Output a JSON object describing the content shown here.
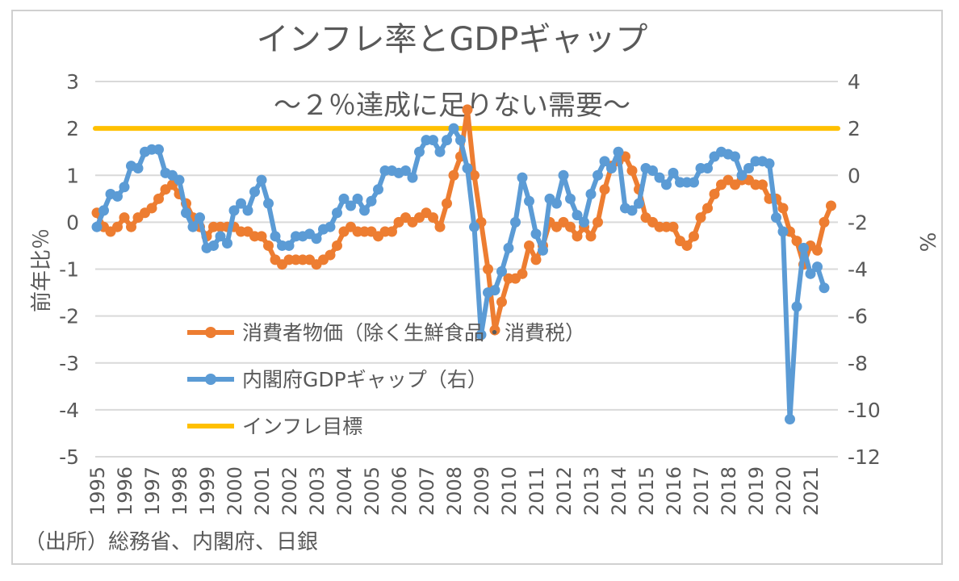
{
  "chart_data": {
    "type": "line",
    "title": "インフレ率とGDPギャップ",
    "subtitle": "～２％達成に足りない需要～",
    "ylabel_left": "前年比％",
    "ylabel_right": "%",
    "source": "（出所）総務省、内閣府、日銀",
    "x_start": "1995Q1",
    "x_frequency": "quarterly",
    "x_tick_labels": [
      "1995",
      "1996",
      "1997",
      "1998",
      "1999",
      "2000",
      "2001",
      "2002",
      "2003",
      "2004",
      "2005",
      "2006",
      "2007",
      "2008",
      "2009",
      "2010",
      "2011",
      "2012",
      "2013",
      "2014",
      "2015",
      "2016",
      "2017",
      "2018",
      "2019",
      "2020",
      "2021"
    ],
    "ylim_left": [
      -5,
      3
    ],
    "yticks_left": [
      "3",
      "2",
      "1",
      "0",
      "-1",
      "-2",
      "-3",
      "-4",
      "-5"
    ],
    "ylim_right": [
      -12,
      4
    ],
    "yticks_right": [
      "4",
      "2",
      "0",
      "-2",
      "-4",
      "-6",
      "-8",
      "-10",
      "-12"
    ],
    "grid": true,
    "legend_placement": "bottom-center inside plot",
    "series": [
      {
        "name": "消費者物価（除く生鮮食品・消費税）",
        "axis": "left",
        "color": "#ED7D31",
        "values": [
          0.2,
          -0.1,
          -0.2,
          -0.1,
          0.1,
          -0.1,
          0.1,
          0.2,
          0.3,
          0.5,
          0.7,
          0.8,
          0.6,
          0.4,
          0.1,
          -0.1,
          -0.3,
          -0.1,
          -0.1,
          -0.1,
          -0.1,
          -0.2,
          -0.2,
          -0.3,
          -0.3,
          -0.5,
          -0.8,
          -0.9,
          -0.8,
          -0.8,
          -0.8,
          -0.8,
          -0.9,
          -0.8,
          -0.7,
          -0.5,
          -0.2,
          -0.1,
          -0.2,
          -0.2,
          -0.2,
          -0.3,
          -0.2,
          -0.2,
          0.0,
          0.1,
          0.0,
          0.1,
          0.2,
          0.1,
          -0.1,
          0.4,
          1.0,
          1.4,
          2.4,
          1.0,
          0.0,
          -1.0,
          -2.3,
          -1.7,
          -1.2,
          -1.2,
          -1.1,
          -0.5,
          -0.8,
          -0.5,
          0.0,
          -0.1,
          0.0,
          -0.1,
          -0.3,
          -0.1,
          -0.3,
          0.0,
          0.7,
          1.2,
          1.3,
          1.4,
          1.1,
          0.7,
          0.1,
          0.0,
          -0.1,
          -0.1,
          -0.1,
          -0.4,
          -0.5,
          -0.3,
          0.1,
          0.3,
          0.6,
          0.8,
          0.9,
          0.8,
          0.9,
          0.9,
          0.8,
          0.8,
          0.5,
          0.5,
          0.3,
          -0.2,
          -0.4,
          -0.9,
          -0.5,
          -0.6,
          0.0,
          0.35
        ]
      },
      {
        "name": "内閣府GDPギャップ（右）",
        "axis": "right",
        "color": "#5B9BD5",
        "values": [
          -2.2,
          -1.5,
          -0.8,
          -0.9,
          -0.5,
          0.4,
          0.3,
          1.0,
          1.1,
          1.1,
          0.1,
          0.0,
          -0.2,
          -1.6,
          -2.2,
          -1.8,
          -3.1,
          -3.0,
          -2.6,
          -2.9,
          -1.5,
          -1.2,
          -1.5,
          -0.7,
          -0.2,
          -1.2,
          -2.6,
          -3.0,
          -3.0,
          -2.6,
          -2.6,
          -2.5,
          -2.7,
          -2.3,
          -2.2,
          -1.6,
          -1.0,
          -1.3,
          -1.0,
          -1.5,
          -1.1,
          -0.6,
          0.2,
          0.2,
          0.1,
          0.2,
          -0.1,
          1.0,
          1.5,
          1.5,
          1.0,
          1.5,
          2.0,
          1.5,
          0.3,
          -2.2,
          -6.8,
          -5.0,
          -4.9,
          -4.1,
          -3.1,
          -2.0,
          -0.1,
          -1.1,
          -2.5,
          -3.2,
          -1.0,
          -1.2,
          0.0,
          -1.0,
          -1.7,
          -2.0,
          -0.8,
          0.0,
          0.6,
          0.3,
          1.0,
          -1.4,
          -1.5,
          -1.2,
          0.3,
          0.2,
          -0.1,
          -0.4,
          0.1,
          -0.3,
          -0.3,
          -0.3,
          0.3,
          0.3,
          0.8,
          1.0,
          0.9,
          0.8,
          0.0,
          0.3,
          0.6,
          0.6,
          0.5,
          -1.8,
          -2.4,
          -10.4,
          -5.6,
          -3.1,
          -4.2,
          -3.9,
          -4.8,
          null
        ]
      },
      {
        "name": "インフレ目標",
        "axis": "left",
        "color": "#FFC000",
        "value": 2
      }
    ]
  }
}
